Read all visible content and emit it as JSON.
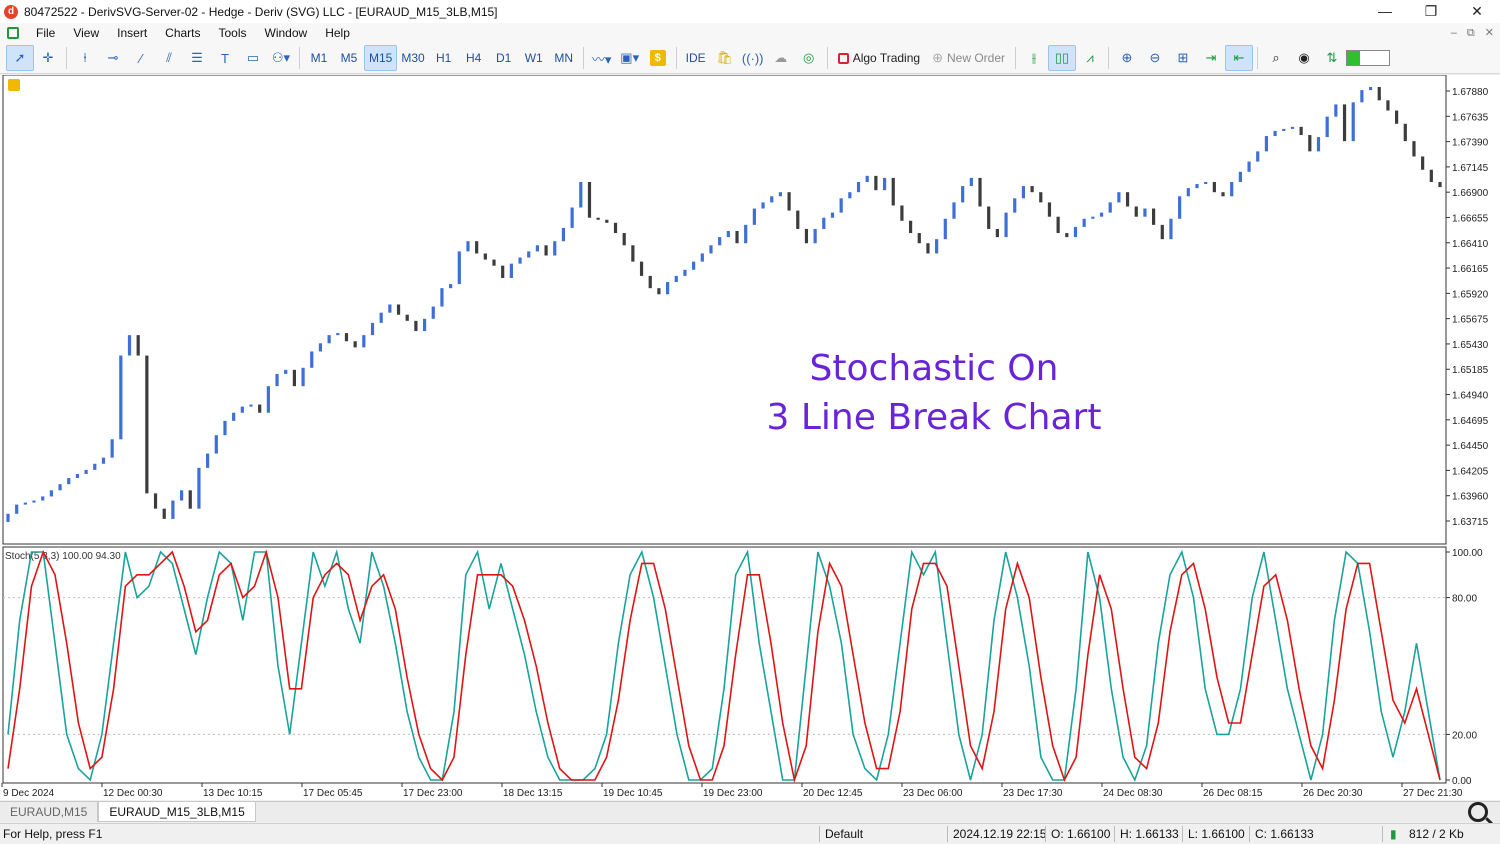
{
  "window": {
    "title": "80472522 - DerivSVG-Server-02 - Hedge - Deriv (SVG) LLC - [EURAUD_M15_3LB,M15]",
    "logo_letter": "d",
    "buttons": [
      "—",
      "❐",
      "✕"
    ]
  },
  "menu": {
    "items": [
      "File",
      "View",
      "Insert",
      "Charts",
      "Tools",
      "Window",
      "Help"
    ],
    "mdi_buttons": [
      "–",
      "⧉",
      "✕"
    ]
  },
  "toolbar": {
    "timeframes": [
      "M1",
      "M5",
      "M15",
      "M30",
      "H1",
      "H4",
      "D1",
      "W1",
      "MN"
    ],
    "active_timeframe": "M15",
    "ide_label": "IDE",
    "algo_label": "Algo Trading",
    "new_order_label": "New Order",
    "dollar_label": "$",
    "signal_level": 0.3
  },
  "chart": {
    "annotation_line1": "Stochastic On",
    "annotation_line2": "3 Line Break Chart",
    "annotation_color": "#6a24d8",
    "bull_color": "#3d6fd6",
    "bear_color": "#3c3c3c",
    "price_labels": [
      "1.67880",
      "1.67635",
      "1.67390",
      "1.67145",
      "1.66900",
      "1.66655",
      "1.66410",
      "1.66165",
      "1.65920",
      "1.65675",
      "1.65430",
      "1.65185",
      "1.64940",
      "1.64695",
      "1.64450",
      "1.64205",
      "1.63960",
      "1.63715"
    ],
    "indicator_label": "Stoch(5,3,3) 100.00 94.30",
    "stoch_levels": [
      "100.00",
      "80.00",
      "20.00",
      "0.00"
    ],
    "main_color": "#1aa39c",
    "signal_color": "#e01414",
    "time_labels": [
      "9 Dec 2024",
      "12 Dec 00:30",
      "13 Dec 10:15",
      "17 Dec 05:45",
      "17 Dec 23:00",
      "18 Dec 13:15",
      "19 Dec 10:45",
      "19 Dec 23:00",
      "20 Dec 12:45",
      "23 Dec 06:00",
      "23 Dec 17:30",
      "24 Dec 08:30",
      "26 Dec 08:15",
      "26 Dec 20:30",
      "27 Dec 21:30"
    ]
  },
  "chart_data": {
    "type": "candlestick",
    "closes": [
      1.6375,
      1.6384,
      1.6386,
      1.6388,
      1.6392,
      1.6398,
      1.6404,
      1.641,
      1.6414,
      1.6418,
      1.6424,
      1.643,
      1.6448,
      1.653,
      1.655,
      1.653,
      1.6395,
      1.638,
      1.637,
      1.6388,
      1.6398,
      1.638,
      1.642,
      1.6434,
      1.6452,
      1.6466,
      1.6474,
      1.648,
      1.6482,
      1.6474,
      1.65,
      1.6512,
      1.6516,
      1.65,
      1.6518,
      1.6534,
      1.6542,
      1.655,
      1.6552,
      1.6544,
      1.6538,
      1.655,
      1.6562,
      1.6572,
      1.658,
      1.657,
      1.6564,
      1.6554,
      1.6566,
      1.6578,
      1.6596,
      1.66,
      1.6632,
      1.6642,
      1.663,
      1.6624,
      1.6618,
      1.6606,
      1.662,
      1.6626,
      1.6632,
      1.6638,
      1.6628,
      1.6642,
      1.6655,
      1.6675,
      1.67,
      1.6665,
      1.6663,
      1.666,
      1.665,
      1.6638,
      1.6622,
      1.6608,
      1.6596,
      1.659,
      1.6602,
      1.6608,
      1.6614,
      1.6622,
      1.663,
      1.6638,
      1.6646,
      1.6652,
      1.664,
      1.6658,
      1.6674,
      1.668,
      1.6686,
      1.669,
      1.6672,
      1.6654,
      1.664,
      1.6654,
      1.6665,
      1.667,
      1.6684,
      1.669,
      1.67,
      1.6706,
      1.6692,
      1.6704,
      1.6677,
      1.6662,
      1.665,
      1.664,
      1.663,
      1.6644,
      1.6664,
      1.668,
      1.6696,
      1.6704,
      1.6676,
      1.6654,
      1.6646,
      1.667,
      1.6684,
      1.6696,
      1.669,
      1.668,
      1.6666,
      1.665,
      1.6646,
      1.6656,
      1.6664,
      1.6666,
      1.667,
      1.668,
      1.669,
      1.6676,
      1.6666,
      1.6674,
      1.6658,
      1.6644,
      1.6664,
      1.6686,
      1.6694,
      1.6698,
      1.67,
      1.669,
      1.6686,
      1.67,
      1.671,
      1.672,
      1.673,
      1.6745,
      1.675,
      1.6752,
      1.6754,
      1.6746,
      1.673,
      1.6744,
      1.6764,
      1.6776,
      1.674,
      1.6778,
      1.679,
      1.6793,
      1.678,
      1.677,
      1.6757,
      1.674,
      1.6725,
      1.6712,
      1.67,
      1.6695
    ],
    "ylim": [
      1.6365,
      1.6795
    ],
    "stoch_main": [
      20,
      70,
      100,
      100,
      60,
      20,
      5,
      0,
      20,
      60,
      100,
      80,
      85,
      100,
      95,
      75,
      55,
      80,
      100,
      95,
      70,
      100,
      100,
      50,
      20,
      60,
      100,
      85,
      100,
      75,
      60,
      100,
      85,
      60,
      30,
      10,
      0,
      0,
      30,
      90,
      100,
      75,
      95,
      75,
      55,
      30,
      10,
      0,
      0,
      0,
      5,
      20,
      60,
      90,
      100,
      80,
      50,
      20,
      0,
      0,
      5,
      40,
      90,
      100,
      60,
      30,
      0,
      0,
      50,
      100,
      85,
      60,
      20,
      5,
      0,
      20,
      60,
      100,
      90,
      100,
      60,
      20,
      0,
      20,
      70,
      100,
      80,
      50,
      10,
      0,
      0,
      40,
      100,
      80,
      40,
      10,
      0,
      15,
      60,
      90,
      100,
      80,
      40,
      20,
      20,
      40,
      80,
      100,
      70,
      40,
      20,
      0,
      20,
      70,
      100,
      95,
      65,
      30,
      10,
      30,
      60,
      30,
      0
    ],
    "stoch_signal": [
      5,
      40,
      85,
      100,
      90,
      60,
      25,
      5,
      10,
      40,
      85,
      90,
      90,
      95,
      100,
      85,
      65,
      70,
      90,
      95,
      80,
      85,
      100,
      80,
      40,
      40,
      80,
      90,
      95,
      90,
      70,
      85,
      90,
      75,
      45,
      20,
      5,
      0,
      10,
      55,
      90,
      90,
      90,
      85,
      70,
      50,
      25,
      5,
      0,
      0,
      0,
      10,
      35,
      70,
      95,
      95,
      75,
      45,
      15,
      0,
      0,
      15,
      55,
      90,
      90,
      60,
      25,
      0,
      15,
      65,
      95,
      85,
      55,
      25,
      5,
      5,
      30,
      75,
      95,
      95,
      85,
      50,
      15,
      5,
      30,
      75,
      95,
      80,
      45,
      15,
      0,
      10,
      55,
      90,
      75,
      40,
      10,
      5,
      25,
      65,
      90,
      95,
      75,
      45,
      25,
      25,
      55,
      85,
      90,
      70,
      40,
      15,
      5,
      35,
      75,
      95,
      95,
      65,
      35,
      25,
      40,
      20,
      0
    ],
    "stoch_ylim": [
      0,
      100
    ]
  },
  "tabs": [
    "EURAUD,M15",
    "EURAUD_M15_3LB,M15"
  ],
  "active_tab": "EURAUD_M15_3LB,M15",
  "status": {
    "help": "For Help, press F1",
    "profile": "Default",
    "datetime": "2024.12.19 22:15",
    "open": "O: 1.66100",
    "high": "H: 1.66133",
    "low": "L: 1.66100",
    "close": "C: 1.66133",
    "traffic": "812 / 2 Kb"
  }
}
